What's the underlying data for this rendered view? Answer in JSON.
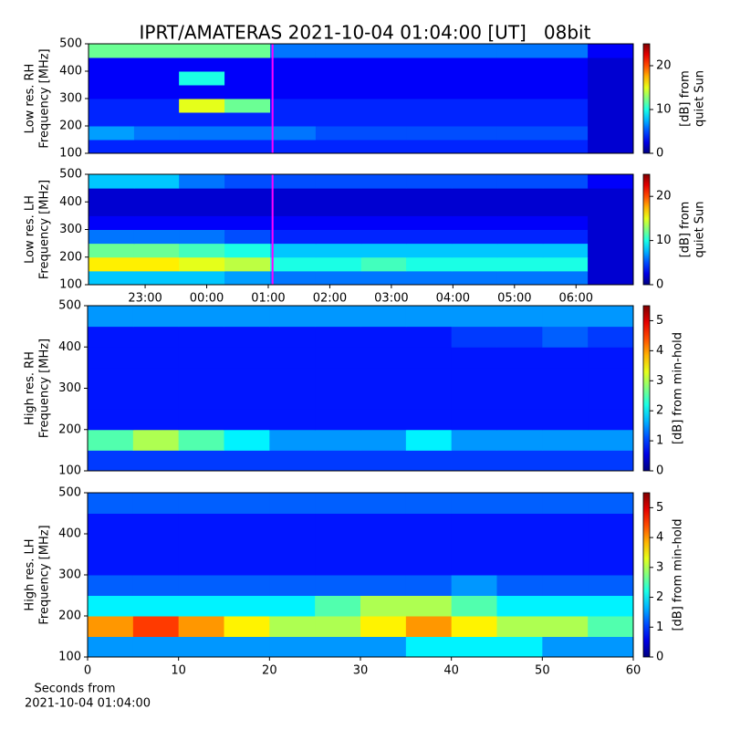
{
  "title": "IPRT/AMATERAS 2021-10-04 01:04:00 [UT]   08bit",
  "chart_data": [
    {
      "type": "heatmap",
      "ylabel": [
        "Low res. RH",
        "Frequency [MHz]"
      ],
      "colorbar_label": [
        "[dB] from",
        "quiet Sun"
      ],
      "xlim": [
        22.08,
        30.93
      ],
      "ylim": [
        100,
        500
      ],
      "yticks": [
        100,
        200,
        300,
        400,
        500
      ],
      "xticks": [],
      "clim": [
        0,
        25
      ],
      "cticks": [
        0,
        10,
        20
      ],
      "marker_x": 25.07,
      "marker_color": "#ff00ff",
      "x_bins": [
        22.08,
        22.82,
        23.55,
        24.29,
        25.03,
        25.77,
        26.51,
        27.24,
        27.98,
        28.72,
        29.46,
        30.19,
        30.93
      ],
      "y_bins": [
        100,
        150,
        200,
        250,
        300,
        350,
        400,
        450,
        500
      ],
      "values": [
        [
          4,
          4,
          4,
          4,
          4,
          4,
          4,
          4,
          4,
          4,
          4,
          2
        ],
        [
          7,
          6,
          6,
          6,
          6,
          5,
          5,
          5,
          5,
          5,
          5,
          2
        ],
        [
          4,
          4,
          4,
          4,
          4,
          4,
          4,
          4,
          4,
          4,
          4,
          2
        ],
        [
          4,
          4,
          15,
          12,
          4,
          4,
          4,
          4,
          4,
          4,
          4,
          2
        ],
        [
          3,
          3,
          3,
          3,
          3,
          3,
          3,
          3,
          3,
          3,
          3,
          2
        ],
        [
          3,
          3,
          10,
          3,
          3,
          3,
          3,
          3,
          3,
          3,
          3,
          2
        ],
        [
          3,
          3,
          3,
          3,
          3,
          3,
          3,
          3,
          3,
          3,
          3,
          2
        ],
        [
          12,
          12,
          12,
          12,
          6,
          6,
          6,
          6,
          6,
          6,
          6,
          3
        ]
      ]
    },
    {
      "type": "heatmap",
      "ylabel": [
        "Low res. LH",
        "Frequency [MHz]"
      ],
      "colorbar_label": [
        "[dB] from",
        "quiet Sun"
      ],
      "xlim": [
        22.08,
        30.93
      ],
      "ylim": [
        100,
        500
      ],
      "yticks": [
        100,
        200,
        300,
        400,
        500
      ],
      "xticks": [
        {
          "value": 23,
          "label": "23:00"
        },
        {
          "value": 24,
          "label": "00:00"
        },
        {
          "value": 25,
          "label": "01:00"
        },
        {
          "value": 26,
          "label": "02:00"
        },
        {
          "value": 27,
          "label": "03:00"
        },
        {
          "value": 28,
          "label": "04:00"
        },
        {
          "value": 29,
          "label": "05:00"
        },
        {
          "value": 30,
          "label": "06:00"
        }
      ],
      "clim": [
        0,
        25
      ],
      "cticks": [
        0,
        10,
        20
      ],
      "marker_x": 25.07,
      "marker_color": "#ff00ff",
      "x_bins": [
        22.08,
        22.82,
        23.55,
        24.29,
        25.03,
        25.77,
        26.51,
        27.24,
        27.98,
        28.72,
        29.46,
        30.19,
        30.93
      ],
      "y_bins": [
        100,
        150,
        200,
        250,
        300,
        350,
        400,
        450,
        500
      ],
      "values": [
        [
          8,
          8,
          8,
          7,
          6,
          6,
          6,
          6,
          6,
          6,
          6,
          2
        ],
        [
          16,
          16,
          15,
          14,
          10,
          10,
          11,
          10,
          10,
          10,
          10,
          2
        ],
        [
          12,
          12,
          11,
          10,
          8,
          8,
          8,
          8,
          8,
          8,
          8,
          2
        ],
        [
          6,
          6,
          6,
          5,
          4,
          4,
          4,
          4,
          4,
          4,
          4,
          2
        ],
        [
          3,
          3,
          3,
          3,
          3,
          3,
          3,
          3,
          3,
          3,
          3,
          2
        ],
        [
          2,
          2,
          2,
          2,
          2,
          2,
          2,
          2,
          2,
          2,
          2,
          2
        ],
        [
          2,
          2,
          2,
          2,
          2,
          2,
          2,
          2,
          2,
          2,
          2,
          2
        ],
        [
          8,
          8,
          6,
          5,
          5,
          5,
          5,
          5,
          5,
          5,
          5,
          3
        ]
      ]
    },
    {
      "type": "heatmap",
      "ylabel": [
        "High res. RH",
        "Frequency [MHz]"
      ],
      "colorbar_label": [
        "[dB] from min-hold"
      ],
      "xlim": [
        0,
        60
      ],
      "ylim": [
        100,
        500
      ],
      "yticks": [
        100,
        200,
        300,
        400,
        500
      ],
      "xticks": [],
      "clim": [
        0,
        5.5
      ],
      "cticks": [
        0,
        1,
        2,
        3,
        4,
        5
      ],
      "x_bins": [
        0,
        5,
        10,
        15,
        20,
        25,
        30,
        35,
        40,
        45,
        50,
        55,
        60
      ],
      "y_bins": [
        100,
        150,
        200,
        250,
        300,
        350,
        400,
        450,
        500
      ],
      "values": [
        [
          1,
          1,
          1,
          1,
          1,
          1,
          1,
          1,
          1,
          1,
          1,
          1
        ],
        [
          2.5,
          3,
          2.5,
          2,
          1.5,
          1.5,
          1.5,
          2,
          1.5,
          1.5,
          1.5,
          1.5
        ],
        [
          0.8,
          0.8,
          0.8,
          0.8,
          0.8,
          0.8,
          0.8,
          0.8,
          0.8,
          0.8,
          0.8,
          0.8
        ],
        [
          0.8,
          0.8,
          0.8,
          0.8,
          0.8,
          0.8,
          0.8,
          0.8,
          0.8,
          0.8,
          0.8,
          0.8
        ],
        [
          0.8,
          0.8,
          0.8,
          0.8,
          0.8,
          0.8,
          0.8,
          0.8,
          0.8,
          0.8,
          0.8,
          0.8
        ],
        [
          0.8,
          0.8,
          0.8,
          0.8,
          0.8,
          0.8,
          0.8,
          0.8,
          0.8,
          0.8,
          0.8,
          0.8
        ],
        [
          0.8,
          0.8,
          0.8,
          0.8,
          0.8,
          0.8,
          0.8,
          0.8,
          1,
          1,
          1.2,
          1
        ],
        [
          1.5,
          1.5,
          1.5,
          1.5,
          1.5,
          1.5,
          1.5,
          1.5,
          1.5,
          1.5,
          1.5,
          1.5
        ]
      ]
    },
    {
      "type": "heatmap",
      "ylabel": [
        "High res. LH",
        "Frequency [MHz]"
      ],
      "colorbar_label": [
        "[dB] from min-hold"
      ],
      "xlabel": [
        "Seconds from",
        "2021-10-04 01:04:00"
      ],
      "xlim": [
        0,
        60
      ],
      "ylim": [
        100,
        500
      ],
      "yticks": [
        100,
        200,
        300,
        400,
        500
      ],
      "xticks": [
        0,
        10,
        20,
        30,
        40,
        50,
        60
      ],
      "clim": [
        0,
        5.5
      ],
      "cticks": [
        0,
        1,
        2,
        3,
        4,
        5
      ],
      "x_bins": [
        0,
        5,
        10,
        15,
        20,
        25,
        30,
        35,
        40,
        45,
        50,
        55,
        60
      ],
      "y_bins": [
        100,
        150,
        200,
        250,
        300,
        350,
        400,
        450,
        500
      ],
      "values": [
        [
          1.5,
          1.5,
          1.5,
          1.5,
          1.5,
          1.5,
          1.5,
          2,
          2,
          2,
          1.5,
          1.5
        ],
        [
          4,
          4.5,
          4,
          3.5,
          3,
          3,
          3.5,
          4,
          3.5,
          3,
          3,
          2.5
        ],
        [
          2,
          2,
          2,
          2,
          2,
          2.5,
          3,
          3,
          2.5,
          2,
          2,
          2
        ],
        [
          1.2,
          1.2,
          1.2,
          1.2,
          1.2,
          1.2,
          1.2,
          1.2,
          1.5,
          1.2,
          1.2,
          1.2
        ],
        [
          0.8,
          0.8,
          0.8,
          0.8,
          0.8,
          0.8,
          0.8,
          0.8,
          0.8,
          0.8,
          0.8,
          0.8
        ],
        [
          0.8,
          0.8,
          0.8,
          0.8,
          0.8,
          0.8,
          0.8,
          0.8,
          0.8,
          0.8,
          0.8,
          0.8
        ],
        [
          0.8,
          0.8,
          0.8,
          0.8,
          0.8,
          0.8,
          0.8,
          0.8,
          0.8,
          0.8,
          0.8,
          0.8
        ],
        [
          1.2,
          1.2,
          1.2,
          1.2,
          1.2,
          1.2,
          1.2,
          1.2,
          1.2,
          1.2,
          1.2,
          1.2
        ]
      ]
    }
  ]
}
